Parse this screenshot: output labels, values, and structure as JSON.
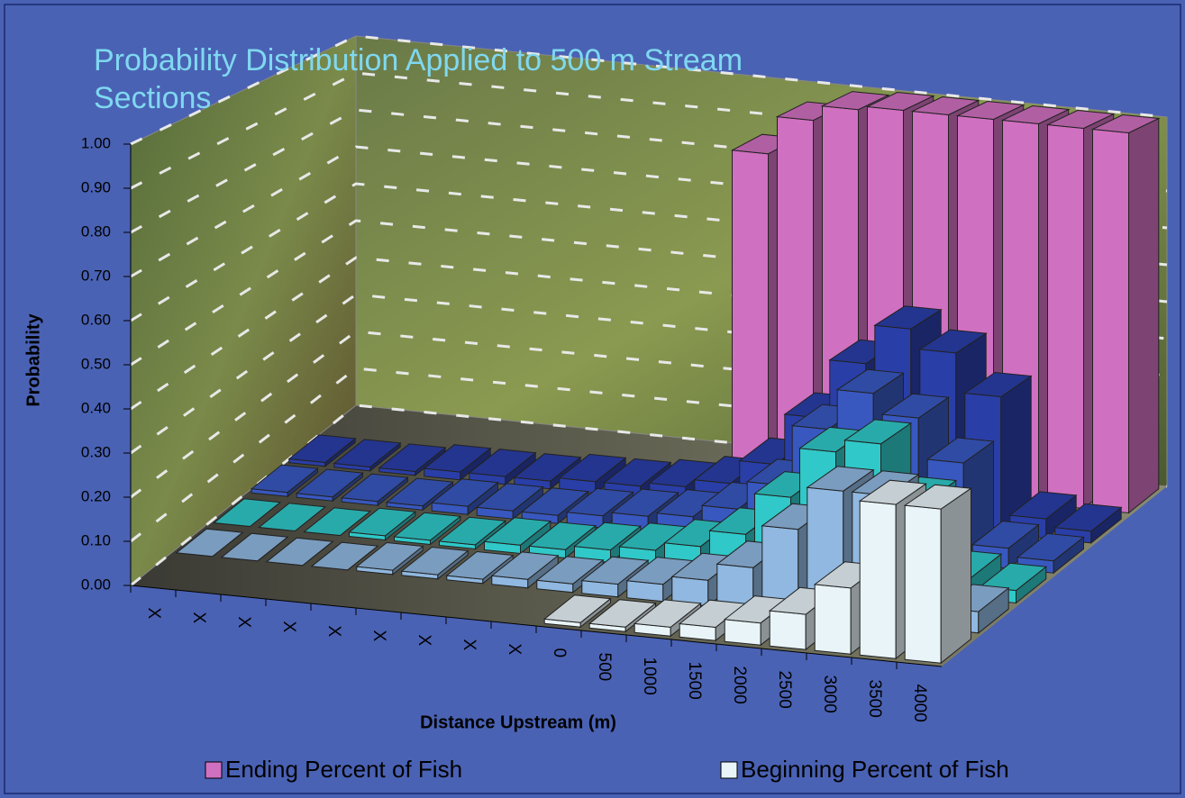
{
  "chart_data": {
    "type": "bar3d",
    "title": "Probability Distribution Applied to 500 m Stream Sections",
    "y_label": "Probability",
    "x_label": "Distance Upstream (m)",
    "categories": [
      "X",
      "X",
      "X",
      "X",
      "X",
      "X",
      "X",
      "X",
      "X",
      "0",
      "500",
      "1000",
      "1500",
      "2000",
      "2500",
      "3000",
      "3500",
      "4000"
    ],
    "ylim": [
      0,
      1
    ],
    "yticks": [
      {
        "value": 0,
        "label": "0.00"
      },
      {
        "value": 0.1,
        "label": "0.10"
      },
      {
        "value": 0.2,
        "label": "0.20"
      },
      {
        "value": 0.3,
        "label": "0.30"
      },
      {
        "value": 0.4,
        "label": "0.40"
      },
      {
        "value": 0.5,
        "label": "0.50"
      },
      {
        "value": 0.6,
        "label": "0.60"
      },
      {
        "value": 0.7,
        "label": "0.70"
      },
      {
        "value": 0.8,
        "label": "0.80"
      },
      {
        "value": 0.9,
        "label": "0.90"
      },
      {
        "value": 1,
        "label": "1.00"
      }
    ],
    "grid": true,
    "series": [
      {
        "name": "Ending Percent of Fish",
        "color": "#d070c0",
        "values": [
          null,
          null,
          null,
          null,
          null,
          null,
          null,
          null,
          null,
          0.85,
          0.95,
          0.99,
          1,
          1,
          1,
          1,
          1,
          1
        ]
      },
      {
        "color": "#2a3ea8",
        "values": [
          0.01,
          0.01,
          0.01,
          0.02,
          0.02,
          0.02,
          0.03,
          0.03,
          0.04,
          0.06,
          0.12,
          0.25,
          0.4,
          0.5,
          0.45,
          0.35,
          0.05,
          0.03
        ]
      },
      {
        "color": "#3858c0",
        "values": [
          0.01,
          0.01,
          0.01,
          0.01,
          0.02,
          0.02,
          0.02,
          0.03,
          0.04,
          0.05,
          0.08,
          0.15,
          0.3,
          0.4,
          0.35,
          0.25,
          0.05,
          0.03
        ]
      },
      {
        "color": "#30c8c8",
        "values": [
          0,
          0,
          0,
          0.01,
          0.01,
          0.01,
          0.02,
          0.02,
          0.03,
          0.04,
          0.06,
          0.1,
          0.2,
          0.32,
          0.35,
          0.22,
          0.05,
          0.03
        ]
      },
      {
        "color": "#90b8e0",
        "values": [
          0,
          0,
          0,
          0,
          0.01,
          0.01,
          0.01,
          0.02,
          0.02,
          0.03,
          0.04,
          0.06,
          0.1,
          0.2,
          0.3,
          0.3,
          0.2,
          0.05
        ]
      },
      {
        "name": "Beginning Percent of Fish",
        "color": "#e8f4f8",
        "values": [
          null,
          null,
          null,
          null,
          null,
          null,
          null,
          null,
          null,
          0.01,
          0.01,
          0.02,
          0.03,
          0.05,
          0.08,
          0.15,
          0.35,
          0.35
        ]
      }
    ]
  }
}
